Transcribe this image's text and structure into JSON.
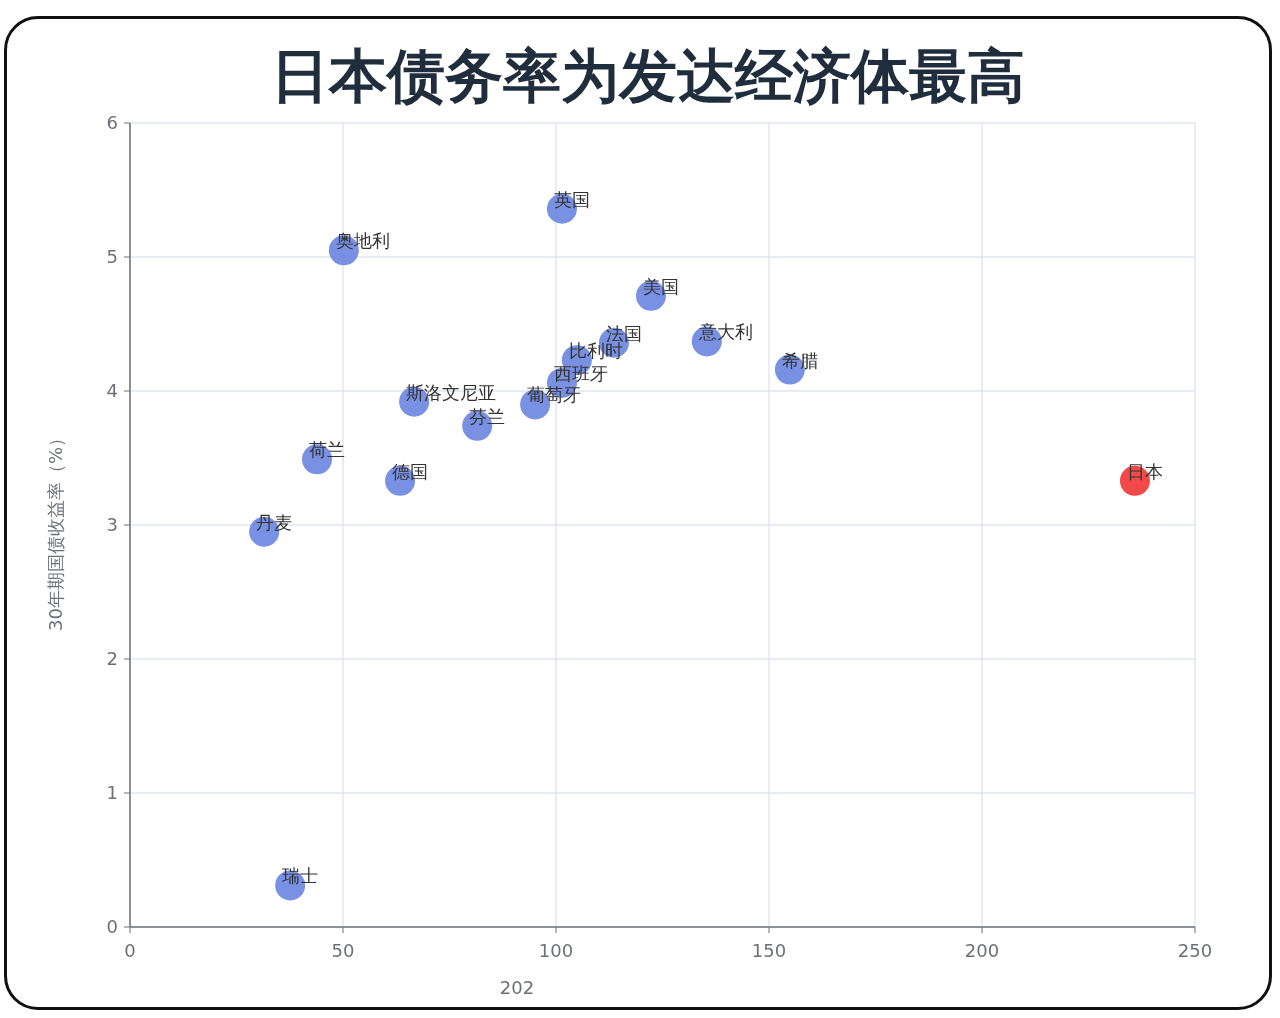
{
  "chart_data": {
    "type": "scatter",
    "title": "日本债务率为发达经济体最高",
    "xlabel": "202",
    "ylabel": "30年期国债收益率（%）",
    "xlim": [
      0,
      250
    ],
    "xticks": [
      0,
      50,
      100,
      150,
      200,
      250
    ],
    "ylim": [
      0,
      6
    ],
    "yticks": [
      0,
      1,
      2,
      3,
      4,
      5,
      6
    ],
    "grid": true,
    "marker": "circle",
    "series": [
      {
        "name": "英国",
        "color": "#6a85e0",
        "x": [
          101.4
        ],
        "values": [
          5.36
        ]
      },
      {
        "name": "奥地利",
        "color": "#6a85e0",
        "x": [
          50.2
        ],
        "values": [
          5.05
        ]
      },
      {
        "name": "美国",
        "color": "#6a85e0",
        "x": [
          122.3
        ],
        "values": [
          4.71
        ]
      },
      {
        "name": "法国",
        "color": "#6a85e0",
        "x": [
          113.6
        ],
        "values": [
          4.36
        ]
      },
      {
        "name": "意大利",
        "color": "#6a85e0",
        "x": [
          135.4
        ],
        "values": [
          4.37
        ]
      },
      {
        "name": "希腊",
        "color": "#6a85e0",
        "x": [
          154.9
        ],
        "values": [
          4.16
        ]
      },
      {
        "name": "比利时",
        "color": "#6a85e0",
        "x": [
          104.9
        ],
        "values": [
          4.23
        ]
      },
      {
        "name": "西班牙",
        "color": "#6a85e0",
        "x": [
          101.4
        ],
        "values": [
          4.06
        ]
      },
      {
        "name": "葡萄牙",
        "color": "#6a85e0",
        "x": [
          95.1
        ],
        "values": [
          3.9
        ]
      },
      {
        "name": "斯洛文尼亚",
        "color": "#6a85e0",
        "x": [
          66.7
        ],
        "values": [
          3.92
        ]
      },
      {
        "name": "芬兰",
        "color": "#6a85e0",
        "x": [
          81.5
        ],
        "values": [
          3.74
        ]
      },
      {
        "name": "荷兰",
        "color": "#6a85e0",
        "x": [
          43.9
        ],
        "values": [
          3.49
        ]
      },
      {
        "name": "德国",
        "color": "#6a85e0",
        "x": [
          63.4
        ],
        "values": [
          3.33
        ]
      },
      {
        "name": "丹麦",
        "color": "#6a85e0",
        "x": [
          31.5
        ],
        "values": [
          2.95
        ]
      },
      {
        "name": "瑞士",
        "color": "#6a85e0",
        "x": [
          37.6
        ],
        "values": [
          0.31
        ]
      },
      {
        "name": "日本",
        "color": "#f03535",
        "x": [
          235.9
        ],
        "values": [
          3.33
        ]
      }
    ]
  }
}
